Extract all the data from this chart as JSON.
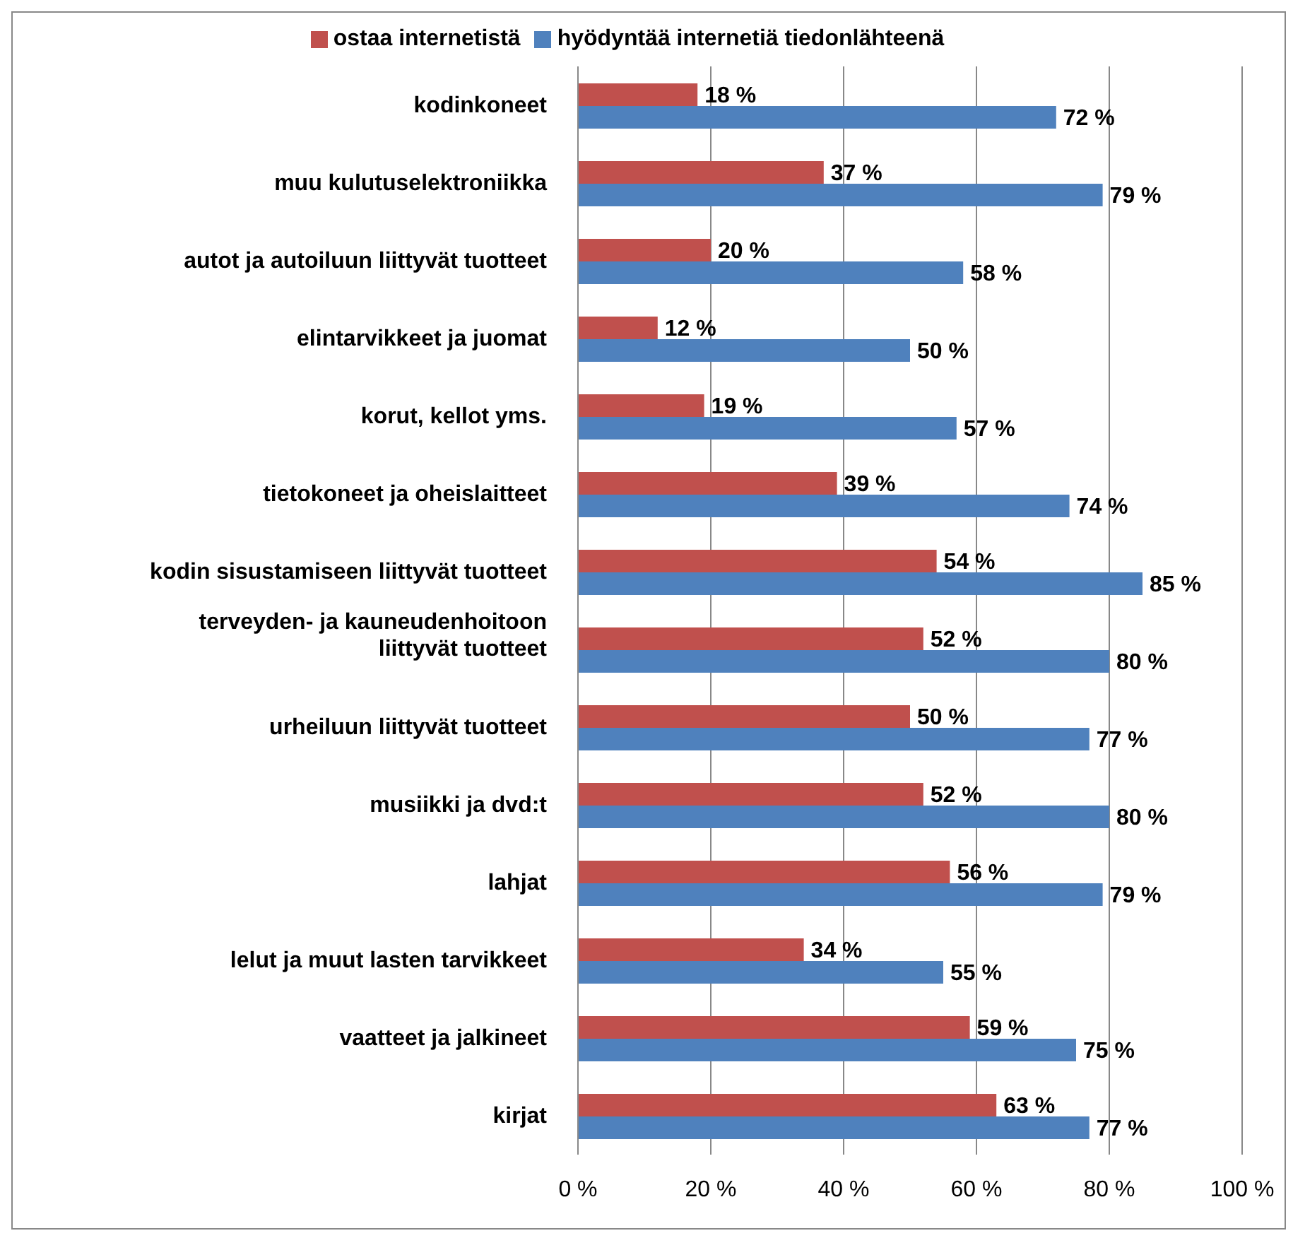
{
  "chart_data": {
    "type": "bar",
    "orientation": "horizontal",
    "categories": [
      "kodinkoneet",
      "muu kulutuselektroniikka",
      "autot ja autoiluun liittyvät tuotteet",
      "elintarvikkeet ja juomat",
      "korut, kellot yms.",
      "tietokoneet ja oheislaitteet",
      "kodin sisustamiseen liittyvät tuotteet",
      "terveyden- ja kauneudenhoitoon liittyvät tuotteet",
      "urheiluun liittyvät tuotteet",
      "musiikki ja dvd:t",
      "lahjat",
      "lelut ja muut lasten tarvikkeet",
      "vaatteet ja jalkineet",
      "kirjat"
    ],
    "series": [
      {
        "name": "ostaa internetistä",
        "color": "#c0504d",
        "values": [
          18,
          37,
          20,
          12,
          19,
          39,
          54,
          52,
          50,
          52,
          56,
          34,
          59,
          63
        ],
        "value_labels": [
          "18 %",
          "37 %",
          "20 %",
          "12 %",
          "19 %",
          "39 %",
          "54 %",
          "52 %",
          "50 %",
          "52 %",
          "56 %",
          "34 %",
          "59 %",
          "63 %"
        ]
      },
      {
        "name": "hyödyntää internetiä tiedonlähteenä",
        "color": "#4f81bd",
        "values": [
          72,
          79,
          58,
          50,
          57,
          74,
          85,
          80,
          77,
          80,
          79,
          55,
          75,
          77
        ],
        "value_labels": [
          "72 %",
          "79 %",
          "58 %",
          "50 %",
          "57 %",
          "74 %",
          "85 %",
          "80 %",
          "77 %",
          "80 %",
          "79 %",
          "55 %",
          "75 %",
          "77 %"
        ]
      }
    ],
    "xlim": [
      0,
      100
    ],
    "xticks": [
      {
        "value": 0,
        "label": "0 %"
      },
      {
        "value": 20,
        "label": "20 %"
      },
      {
        "value": 40,
        "label": "40 %"
      },
      {
        "value": 60,
        "label": "60 %"
      },
      {
        "value": 80,
        "label": "80 %"
      },
      {
        "value": 100,
        "label": "100 %"
      }
    ],
    "grid": "x",
    "legend": "top"
  }
}
